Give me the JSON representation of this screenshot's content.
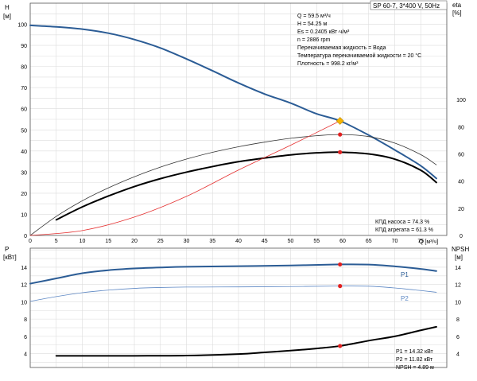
{
  "chart_data": [
    {
      "type": "line",
      "panel": "head-efficiency",
      "title": "SP 60-7, 3*400 V, 50Hz",
      "left_axis": {
        "label_top": "H",
        "label_unit": "[м]",
        "ylim": [
          0,
          110
        ],
        "ticks": [
          0,
          10,
          20,
          30,
          40,
          50,
          60,
          70,
          80,
          90,
          100
        ]
      },
      "right_axis": {
        "label_top": "eta",
        "label_unit": "[%]",
        "ylim": [
          0,
          171
        ],
        "ticks": [
          0,
          20,
          40,
          60,
          80,
          100
        ]
      },
      "x_axis": {
        "label": "Q [м³/ч]",
        "xlim": [
          0,
          80
        ],
        "ticks": [
          0,
          5,
          10,
          15,
          20,
          25,
          30,
          35,
          40,
          45,
          50,
          55,
          60,
          65,
          70,
          75
        ]
      },
      "grid": true,
      "series": [
        {
          "name": "H",
          "axis": "left",
          "color": "#2b5c95",
          "width": 2,
          "x": [
            0,
            5,
            10,
            15,
            20,
            25,
            30,
            35,
            40,
            45,
            50,
            55,
            59.5,
            65,
            70,
            75,
            78
          ],
          "y": [
            99.5,
            98.8,
            97.7,
            95.8,
            92.8,
            88.8,
            83.6,
            78.0,
            72.2,
            67.0,
            62.7,
            57.6,
            54.25,
            47.5,
            40.5,
            33.0,
            27.0
          ]
        },
        {
          "name": "КПД агрегата",
          "axis": "right",
          "color": "#000000",
          "width": 2,
          "x": [
            5,
            10,
            15,
            20,
            25,
            30,
            35,
            40,
            45,
            50,
            55,
            59.5,
            65,
            70,
            75,
            78
          ],
          "y": [
            11.5,
            21.0,
            29.0,
            36.0,
            41.8,
            46.6,
            50.7,
            54.3,
            57.0,
            59.3,
            60.8,
            61.3,
            60.0,
            56.2,
            48.0,
            39.0
          ]
        },
        {
          "name": "КПД насоса",
          "axis": "right",
          "color": "#333333",
          "width": 0.8,
          "x": [
            0,
            5,
            10,
            15,
            20,
            25,
            30,
            35,
            40,
            45,
            50,
            55,
            59.5,
            65,
            70,
            75,
            78
          ],
          "y": [
            0,
            14.0,
            25.5,
            35.0,
            43.2,
            50.3,
            56.2,
            61.2,
            65.3,
            68.7,
            71.5,
            73.4,
            74.3,
            72.8,
            68.0,
            59.5,
            52.0
          ]
        },
        {
          "name": "system curve",
          "axis": "left",
          "color": "#e53030",
          "width": 0.8,
          "x": [
            0,
            10,
            20,
            30,
            40,
            50,
            59.5
          ],
          "y": [
            0,
            2.3,
            8.7,
            18.5,
            31.0,
            42.7,
            54.25
          ]
        }
      ],
      "markers": [
        {
          "series": "H",
          "x": 59.5,
          "y": 54.25,
          "shape": "diamond",
          "color": "#f5b400"
        },
        {
          "series": "КПД насоса",
          "x": 59.5,
          "y": 74.3,
          "shape": "dot",
          "color": "#e02020"
        },
        {
          "series": "КПД агрегата",
          "x": 59.5,
          "y": 61.3,
          "shape": "dot",
          "color": "#e02020"
        }
      ],
      "info_lines": [
        "Q = 59.5 м³/ч",
        "H = 54.25 м",
        "Es = 0.2405 кВт·ч/м³",
        "n = 2886 rpm",
        "Перекачиваемая жидкость = Вода",
        "Температура перекачиваемой жидкости = 20 °C",
        "Плотность = 998.2 кг/м³"
      ],
      "efficiency_lines": [
        "КПД насоса = 74.3 %",
        "КПД агрегата = 61.3 %"
      ]
    },
    {
      "type": "line",
      "panel": "power-npsh",
      "left_axis": {
        "label_top": "P",
        "label_unit": "[кВт]",
        "ylim": [
          2.4,
          16.2
        ],
        "ticks": [
          4,
          6,
          8,
          10,
          12,
          14
        ]
      },
      "right_axis": {
        "label_top": "NPSH",
        "label_unit": "[м]",
        "ylim": [
          2.4,
          16.2
        ],
        "ticks": [
          4,
          6,
          8,
          10,
          12,
          14
        ]
      },
      "x_axis": {
        "xlim": [
          0,
          80
        ]
      },
      "grid": true,
      "series": [
        {
          "name": "P1",
          "axis": "left",
          "color": "#2b5c95",
          "width": 2,
          "x": [
            0,
            5,
            10,
            15,
            20,
            25,
            30,
            40,
            50,
            59.5,
            65,
            70,
            75,
            78
          ],
          "y": [
            12.1,
            12.7,
            13.3,
            13.65,
            13.85,
            13.97,
            14.05,
            14.12,
            14.2,
            14.32,
            14.3,
            14.1,
            13.8,
            13.55
          ]
        },
        {
          "name": "P2",
          "axis": "left",
          "color": "#5e88c4",
          "width": 0.8,
          "x": [
            0,
            5,
            10,
            15,
            20,
            25,
            30,
            40,
            50,
            59.5,
            65,
            70,
            75,
            78
          ],
          "y": [
            10.05,
            10.6,
            11.05,
            11.35,
            11.55,
            11.65,
            11.7,
            11.72,
            11.76,
            11.82,
            11.8,
            11.6,
            11.3,
            11.1
          ]
        },
        {
          "name": "NPSH",
          "axis": "right",
          "color": "#000000",
          "width": 2,
          "x": [
            5,
            10,
            20,
            30,
            40,
            45,
            50,
            55,
            59.5,
            65,
            70,
            75,
            78
          ],
          "y": [
            3.75,
            3.75,
            3.75,
            3.78,
            3.95,
            4.15,
            4.35,
            4.6,
            4.89,
            5.5,
            6.0,
            6.7,
            7.1
          ]
        }
      ],
      "markers": [
        {
          "series": "P1",
          "x": 59.5,
          "y": 14.32,
          "shape": "dot",
          "color": "#e02020"
        },
        {
          "series": "P2",
          "x": 59.5,
          "y": 11.82,
          "shape": "dot",
          "color": "#e02020"
        },
        {
          "series": "NPSH",
          "x": 59.5,
          "y": 4.89,
          "shape": "dot",
          "color": "#e02020"
        }
      ],
      "series_labels": [
        "P1",
        "P2"
      ],
      "result_lines": [
        "P1 = 14.32 кВт",
        "P2 = 11.82 кВт",
        "NPSH = 4.89 м"
      ]
    }
  ]
}
